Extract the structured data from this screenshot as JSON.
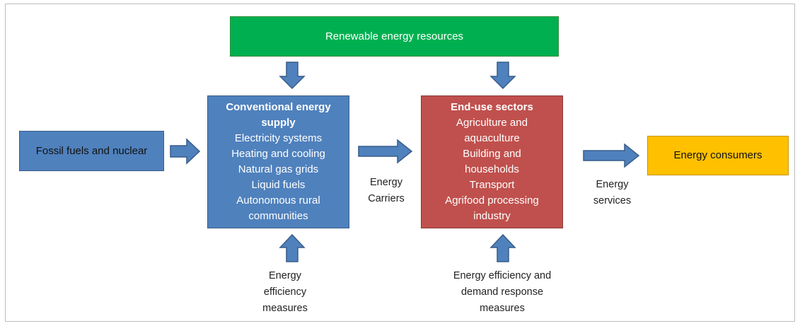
{
  "nodes": [
    {
      "title": "Renewable energy resources"
    },
    {
      "title": "Fossil fuels and nuclear"
    },
    {
      "title": "Conventional energy supply",
      "items": [
        "Electricity systems",
        "Heating and cooling",
        "Natural gas grids",
        "Liquid fuels",
        "Autonomous rural communities"
      ]
    },
    {
      "title": "End-use sectors",
      "items": [
        "Agriculture and aquaculture",
        "Building and households",
        "Transport",
        "Agrifood processing industry"
      ]
    },
    {
      "title": "Energy consumers"
    }
  ],
  "labels": [
    "Energy Carriers",
    "Energy services",
    "Energy efficiency measures",
    "Energy efficiency and demand response measures"
  ]
}
